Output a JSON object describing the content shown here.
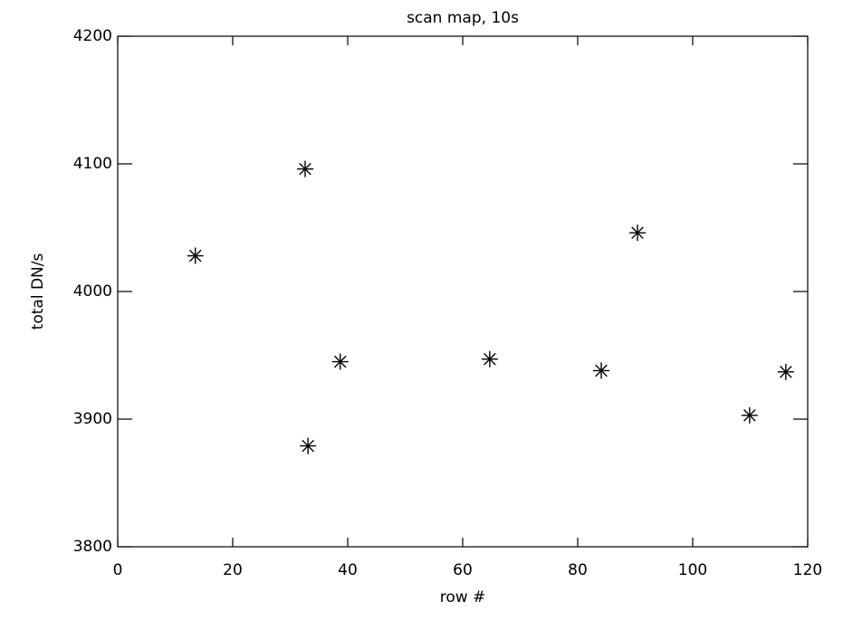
{
  "chart_data": {
    "type": "scatter",
    "title": "scan map, 10s",
    "x_label": "row #",
    "y_label": "total DN/s",
    "x": [
      13.5,
      32.6,
      33.1,
      38.7,
      64.7,
      84.1,
      90.4,
      109.9,
      116.2
    ],
    "values": [
      4028,
      4096,
      3879,
      3945,
      3947,
      3938,
      4046,
      3903,
      3937
    ],
    "color": "#000000",
    "marker": "asterisk",
    "xlim": [
      0,
      120
    ],
    "xticks": [
      0,
      20,
      40,
      60,
      80,
      100,
      120
    ],
    "ylim": [
      3800,
      4200
    ],
    "yticks": [
      3800,
      3900,
      4000,
      4100,
      4200
    ],
    "grid": false
  }
}
